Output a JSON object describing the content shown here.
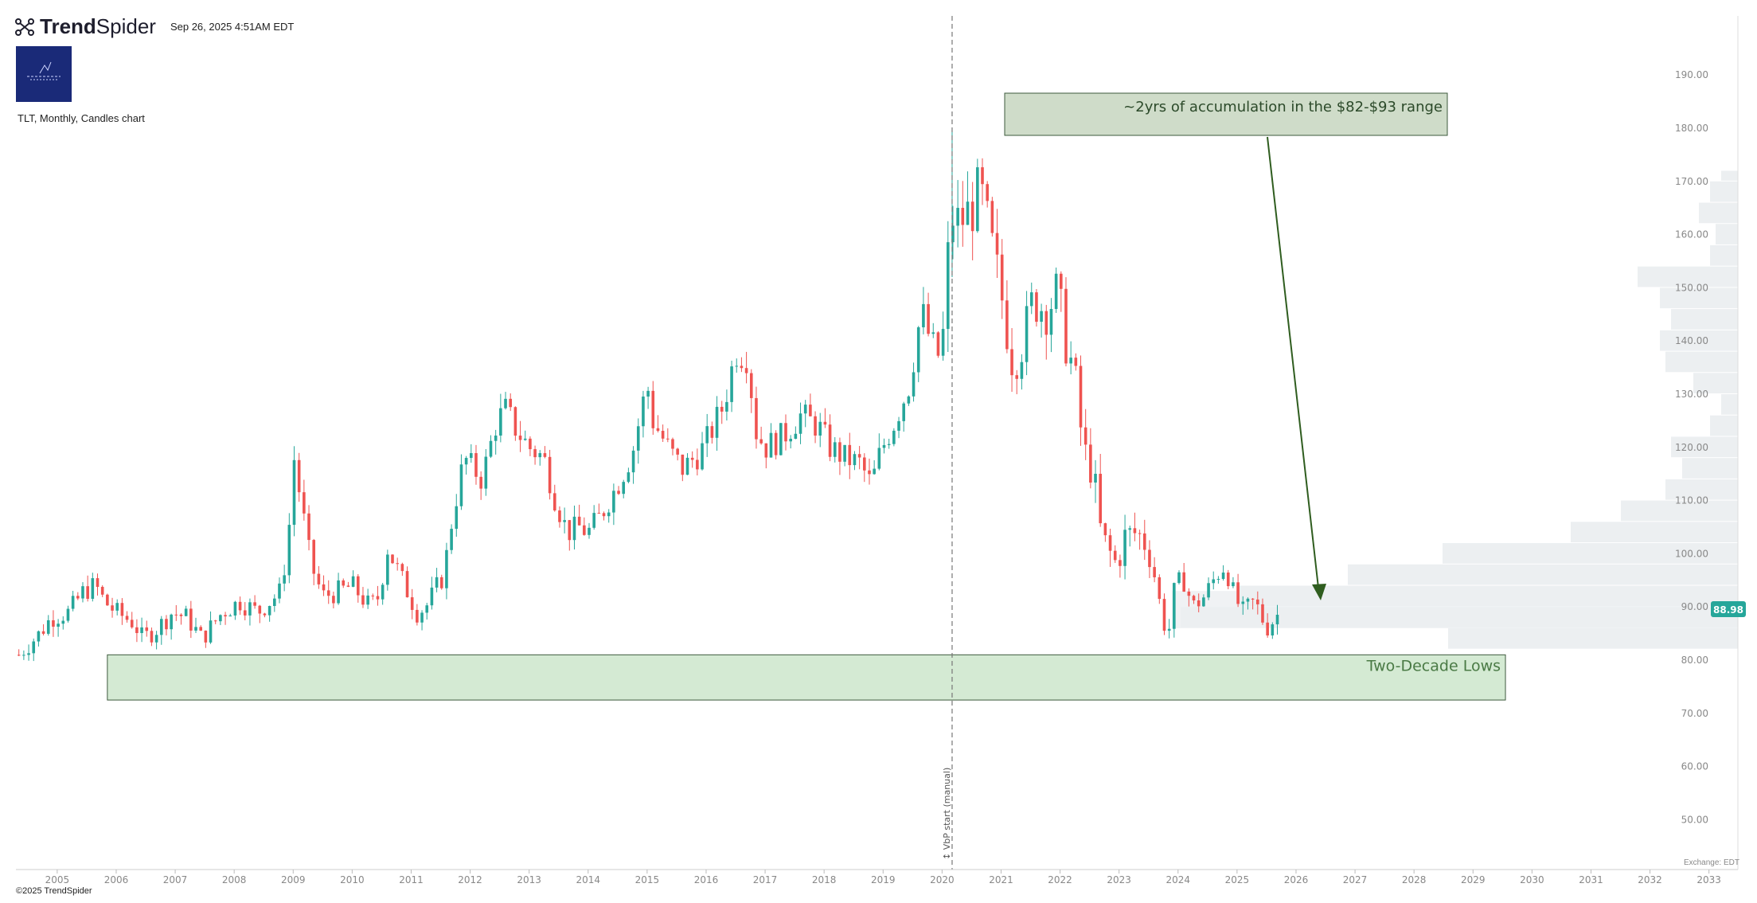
{
  "header": {
    "brand_bold": "Trend",
    "brand_light": "Spider",
    "timestamp": "Sep 26, 2025 4:51AM EDT"
  },
  "chart_description": "TLT, Monthly, Candles chart",
  "footer": {
    "copyright": "©2025 TrendSpider",
    "exchange": "Exchange: EDT"
  },
  "colors": {
    "up": "#26a69a",
    "down": "#ef5350",
    "annotation_fill": "#d4ead3",
    "annotation_box_fill": "#cfdcc9",
    "annotation_text": "#4a7a45",
    "arrow": "#2f5d1f",
    "vp_fill": "#eceff1",
    "price_label_bg": "#26a69a"
  },
  "annotations": {
    "accumulation": "~2yrs of accumulation in the $82-$93 range",
    "lows": "Two-Decade Lows",
    "vbp_label": "↕ VbP start (manual)"
  },
  "chart_data": {
    "type": "candlestick",
    "symbol": "TLT",
    "timeframe": "Monthly",
    "ylim": [
      40,
      200
    ],
    "y_ticks": [
      "50.00",
      "60.00",
      "70.00",
      "80.00",
      "90.00",
      "100.00",
      "110.00",
      "120.00",
      "130.00",
      "140.00",
      "150.00",
      "160.00",
      "170.00",
      "180.00",
      "190.00"
    ],
    "x_ticks": [
      "2005",
      "2006",
      "2007",
      "2008",
      "2009",
      "2010",
      "2011",
      "2012",
      "2013",
      "2014",
      "2015",
      "2016",
      "2017",
      "2018",
      "2019",
      "2020",
      "2021",
      "2022",
      "2023",
      "2024",
      "2025",
      "2026",
      "2027",
      "2028",
      "2029",
      "2030",
      "2031",
      "2032",
      "2033"
    ],
    "x_range_years": [
      2004.3,
      2033.5
    ],
    "last_price": "88.98",
    "vbp_start_year": 2020.17,
    "zone_two_decade_lows": {
      "x_start": 2005.85,
      "x_end": 2029.55,
      "y_low": 72.5,
      "y_high": 81
    },
    "close_path": [
      [
        2004.35,
        81
      ],
      [
        2004.7,
        85
      ],
      [
        2004.9,
        88
      ],
      [
        2005.2,
        89
      ],
      [
        2005.45,
        93
      ],
      [
        2005.65,
        94
      ],
      [
        2005.8,
        91
      ],
      [
        2006.0,
        89
      ],
      [
        2006.3,
        87
      ],
      [
        2006.45,
        84
      ],
      [
        2006.7,
        86
      ],
      [
        2006.95,
        89
      ],
      [
        2007.2,
        88
      ],
      [
        2007.45,
        84
      ],
      [
        2007.8,
        89
      ],
      [
        2008.1,
        91
      ],
      [
        2008.4,
        89
      ],
      [
        2008.8,
        93
      ],
      [
        2008.95,
        107
      ],
      [
        2009.0,
        119
      ],
      [
        2009.1,
        112
      ],
      [
        2009.3,
        98
      ],
      [
        2009.5,
        92
      ],
      [
        2009.8,
        93
      ],
      [
        2010.0,
        94
      ],
      [
        2010.3,
        90
      ],
      [
        2010.45,
        92
      ],
      [
        2010.6,
        101
      ],
      [
        2010.85,
        95
      ],
      [
        2011.1,
        89
      ],
      [
        2011.25,
        90
      ],
      [
        2011.55,
        96
      ],
      [
        2011.7,
        107
      ],
      [
        2011.9,
        118
      ],
      [
        2012.2,
        114
      ],
      [
        2012.45,
        125
      ],
      [
        2012.6,
        127
      ],
      [
        2012.8,
        123
      ],
      [
        2013.0,
        120
      ],
      [
        2013.25,
        118
      ],
      [
        2013.45,
        110
      ],
      [
        2013.65,
        104
      ],
      [
        2013.85,
        105
      ],
      [
        2014.0,
        104
      ],
      [
        2014.2,
        107
      ],
      [
        2014.5,
        113
      ],
      [
        2014.75,
        119
      ],
      [
        2015.0,
        132
      ],
      [
        2015.1,
        125
      ],
      [
        2015.4,
        119
      ],
      [
        2015.6,
        116
      ],
      [
        2015.9,
        119
      ],
      [
        2016.0,
        121
      ],
      [
        2016.3,
        128
      ],
      [
        2016.5,
        138
      ],
      [
        2016.7,
        137
      ],
      [
        2016.85,
        123
      ],
      [
        2017.0,
        120
      ],
      [
        2017.3,
        122
      ],
      [
        2017.6,
        126
      ],
      [
        2017.9,
        124
      ],
      [
        2018.1,
        120
      ],
      [
        2018.35,
        118
      ],
      [
        2018.6,
        117
      ],
      [
        2018.8,
        113
      ],
      [
        2018.95,
        119
      ],
      [
        2019.2,
        125
      ],
      [
        2019.45,
        132
      ],
      [
        2019.65,
        146
      ],
      [
        2019.8,
        140
      ],
      [
        2019.95,
        137
      ],
      [
        2020.0,
        138
      ],
      [
        2020.08,
        152
      ],
      [
        2020.15,
        164
      ],
      [
        2020.25,
        162
      ],
      [
        2020.45,
        164
      ],
      [
        2020.65,
        168
      ],
      [
        2020.85,
        157
      ],
      [
        2021.0,
        149
      ],
      [
        2021.2,
        136
      ],
      [
        2021.4,
        141
      ],
      [
        2021.55,
        148
      ],
      [
        2021.75,
        146
      ],
      [
        2021.95,
        149
      ],
      [
        2022.1,
        140
      ],
      [
        2022.25,
        133
      ],
      [
        2022.4,
        119
      ],
      [
        2022.55,
        116
      ],
      [
        2022.7,
        103
      ],
      [
        2022.85,
        100
      ],
      [
        2022.95,
        98
      ],
      [
        2023.1,
        103
      ],
      [
        2023.3,
        104
      ],
      [
        2023.45,
        102
      ],
      [
        2023.6,
        96
      ],
      [
        2023.75,
        87
      ],
      [
        2023.85,
        86
      ],
      [
        2023.95,
        94
      ],
      [
        2024.1,
        95
      ],
      [
        2024.25,
        90
      ],
      [
        2024.45,
        92
      ],
      [
        2024.65,
        96
      ],
      [
        2024.8,
        98
      ],
      [
        2024.95,
        92
      ],
      [
        2025.1,
        89
      ],
      [
        2025.3,
        91
      ],
      [
        2025.5,
        86
      ],
      [
        2025.65,
        88
      ],
      [
        2025.72,
        89
      ]
    ],
    "volume_profile": [
      {
        "price_low": 40,
        "price_high": 82,
        "length": 0
      },
      {
        "price_low": 82,
        "price_high": 86,
        "length": 0.52
      },
      {
        "price_low": 86,
        "price_high": 90,
        "length": 1.0
      },
      {
        "price_low": 90,
        "price_high": 94,
        "length": 0.9
      },
      {
        "price_low": 94,
        "price_high": 98,
        "length": 0.7
      },
      {
        "price_low": 98,
        "price_high": 102,
        "length": 0.53
      },
      {
        "price_low": 102,
        "price_high": 106,
        "length": 0.3
      },
      {
        "price_low": 106,
        "price_high": 110,
        "length": 0.21
      },
      {
        "price_low": 110,
        "price_high": 114,
        "length": 0.13
      },
      {
        "price_low": 114,
        "price_high": 118,
        "length": 0.1
      },
      {
        "price_low": 118,
        "price_high": 122,
        "length": 0.12
      },
      {
        "price_low": 122,
        "price_high": 126,
        "length": 0.05
      },
      {
        "price_low": 126,
        "price_high": 130,
        "length": 0.03
      },
      {
        "price_low": 130,
        "price_high": 134,
        "length": 0.08
      },
      {
        "price_low": 134,
        "price_high": 138,
        "length": 0.13
      },
      {
        "price_low": 138,
        "price_high": 142,
        "length": 0.14
      },
      {
        "price_low": 142,
        "price_high": 146,
        "length": 0.12
      },
      {
        "price_low": 146,
        "price_high": 150,
        "length": 0.14
      },
      {
        "price_low": 150,
        "price_high": 154,
        "length": 0.18
      },
      {
        "price_low": 154,
        "price_high": 158,
        "length": 0.05
      },
      {
        "price_low": 158,
        "price_high": 162,
        "length": 0.04
      },
      {
        "price_low": 162,
        "price_high": 166,
        "length": 0.07
      },
      {
        "price_low": 166,
        "price_high": 170,
        "length": 0.05
      },
      {
        "price_low": 170,
        "price_high": 172,
        "length": 0.03
      }
    ]
  }
}
